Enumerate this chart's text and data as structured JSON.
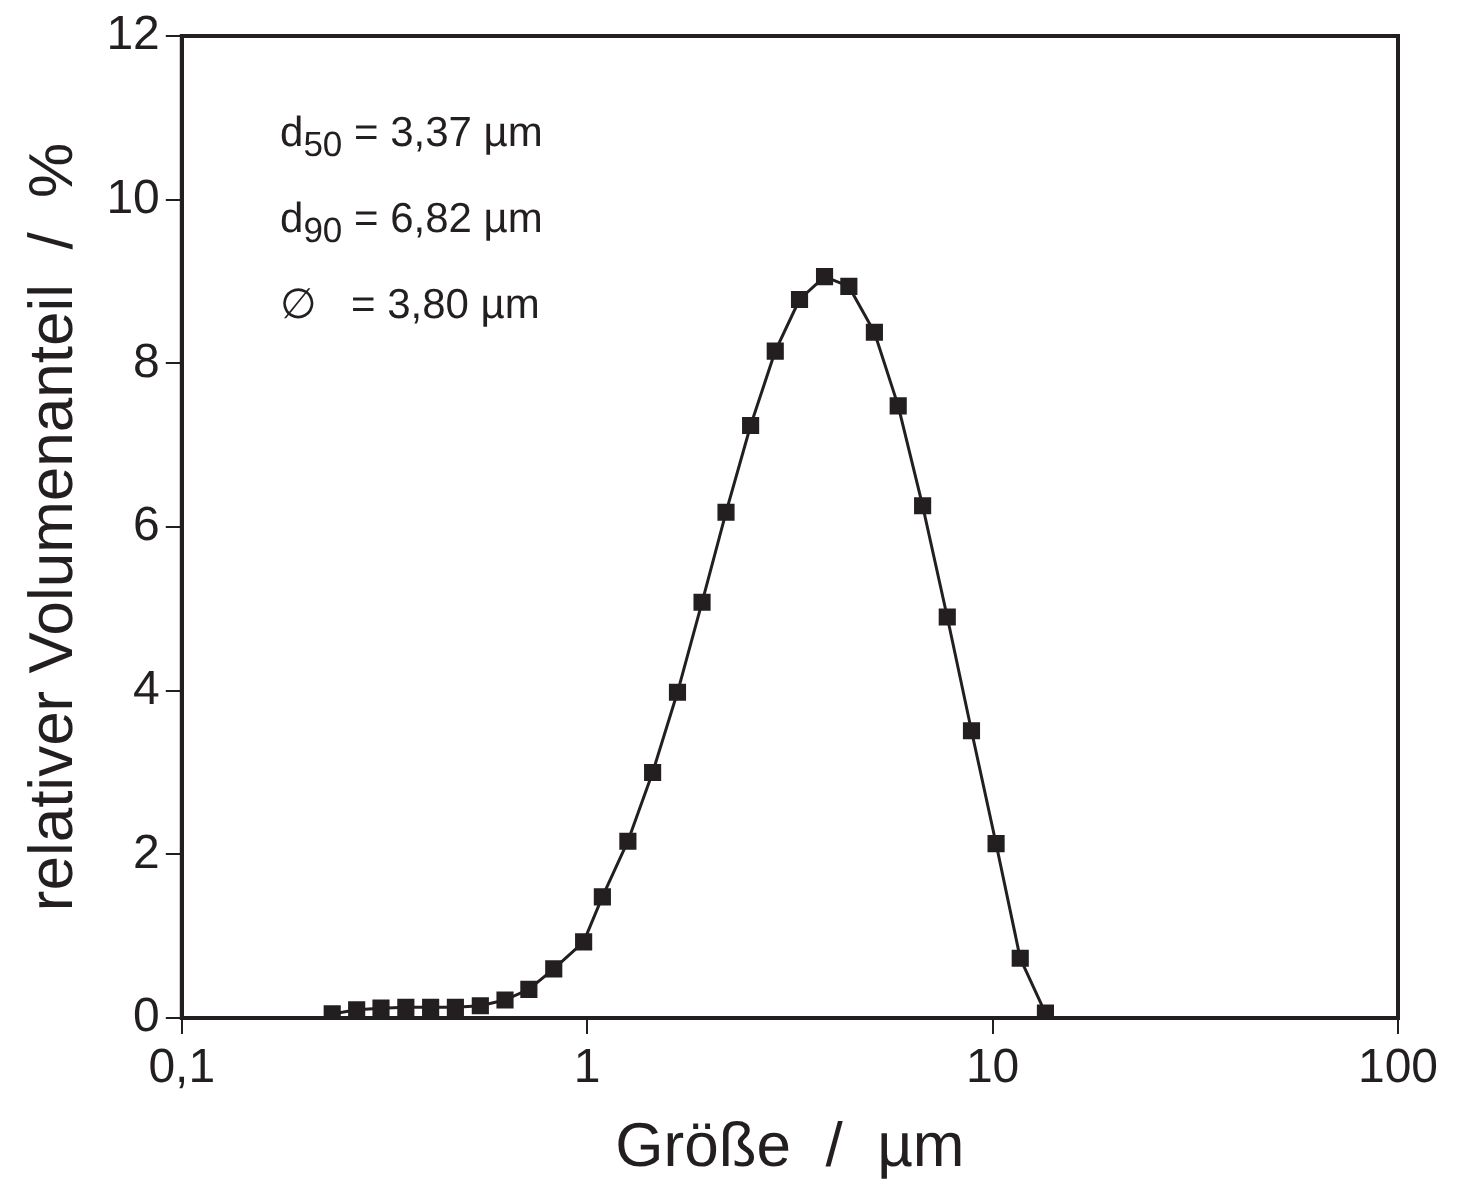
{
  "chart_data": {
    "type": "line",
    "xlabel": "Größe  /  µm",
    "ylabel": "relativer Volumenanteil  /  %",
    "x": [
      0.235,
      0.27,
      0.31,
      0.357,
      0.411,
      0.473,
      0.545,
      0.627,
      0.718,
      0.827,
      0.98,
      1.09,
      1.26,
      1.45,
      1.67,
      1.92,
      2.2,
      2.53,
      2.91,
      3.34,
      3.85,
      4.42,
      5.11,
      5.85,
      6.72,
      7.73,
      8.87,
      10.2,
      11.7,
      13.5
    ],
    "series": [
      {
        "color": "#231f20",
        "values": [
          0.05,
          0.1,
          0.12,
          0.13,
          0.13,
          0.13,
          0.15,
          0.22,
          0.35,
          0.6,
          0.93,
          1.48,
          2.16,
          3.0,
          3.98,
          5.08,
          6.18,
          7.24,
          8.15,
          8.78,
          9.06,
          8.94,
          8.38,
          7.48,
          6.26,
          4.9,
          3.51,
          2.13,
          0.73,
          0.06
        ]
      }
    ],
    "log": "x",
    "xlim": [
      0.1,
      100
    ],
    "xticks": [
      {
        "value": 0.1,
        "label": "0,1"
      },
      1,
      10,
      100
    ],
    "ylim": [
      0,
      12
    ],
    "yticks": [
      0,
      2,
      4,
      6,
      8,
      10,
      12
    ],
    "grid": false,
    "legend": false,
    "marker": "square",
    "line_style": "solid",
    "annotations": [
      "d$_{50}$ = 3,37 µm",
      "d$_{90}$ = 6,82 µm",
      "∅   = 3,80 µm"
    ]
  }
}
